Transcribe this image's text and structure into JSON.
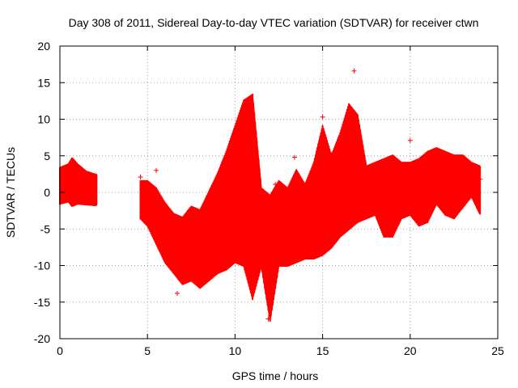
{
  "chart_data": {
    "type": "scatter",
    "title": "Day 308 of 2011, Sidereal Day-to-day VTEC variation (SDTVAR) for receiver ctwn",
    "xlabel": "GPS time / hours",
    "ylabel": "SDTVAR / TECUs",
    "xlim": [
      0,
      25
    ],
    "ylim": [
      -20,
      20
    ],
    "xticks": [
      0,
      5,
      10,
      15,
      20,
      25
    ],
    "yticks": [
      -20,
      -15,
      -10,
      -5,
      0,
      5,
      10,
      15,
      20
    ],
    "grid": true,
    "marker": "+",
    "color": "#ff0000",
    "series": [
      {
        "name": "SDTVAR band (min/max envelope)",
        "x": [
          0.0,
          0.5,
          0.7,
          1.0,
          1.5,
          2.0,
          2.1
        ],
        "y_min": [
          -1.5,
          -1.2,
          -1.8,
          -1.5,
          -1.6,
          -1.7,
          -1.6
        ],
        "y_max": [
          3.3,
          3.8,
          4.6,
          3.8,
          2.8,
          2.4,
          2.3
        ]
      },
      {
        "name": "SDTVAR band (min/max envelope)",
        "x": [
          4.6,
          5.0,
          5.5,
          6.0,
          6.5,
          7.0,
          7.5,
          8.0,
          8.5,
          9.0,
          9.5,
          10.0,
          10.5,
          11.0,
          11.5,
          12.0,
          12.5,
          13.0,
          13.5,
          14.0,
          14.5,
          15.0,
          15.5,
          16.0,
          16.5,
          17.0,
          17.5,
          18.0,
          18.5,
          19.0,
          19.5,
          20.0,
          20.5,
          21.0,
          21.5,
          22.0,
          22.5,
          23.0,
          23.5,
          24.0
        ],
        "y_min": [
          -3.5,
          -4.5,
          -7.0,
          -9.5,
          -11.0,
          -12.5,
          -12.0,
          -13.0,
          -12.0,
          -11.0,
          -10.5,
          -9.5,
          -10.0,
          -14.5,
          -10.0,
          -17.5,
          -10.0,
          -10.0,
          -9.5,
          -9.0,
          -9.0,
          -8.5,
          -7.5,
          -6.0,
          -5.0,
          -4.0,
          -3.5,
          -3.0,
          -6.0,
          -6.0,
          -3.5,
          -3.0,
          -4.5,
          -4.0,
          -1.5,
          -3.0,
          -3.5,
          -2.0,
          -0.5,
          -3.0
        ],
        "y_max": [
          1.5,
          1.5,
          0.5,
          -1.5,
          -3.0,
          -3.5,
          -2.0,
          -2.5,
          0.0,
          2.5,
          5.5,
          9.0,
          12.5,
          13.3,
          0.5,
          -0.5,
          1.5,
          0.5,
          3.0,
          1.0,
          4.0,
          9.0,
          5.0,
          8.0,
          12.0,
          10.5,
          3.5,
          4.0,
          4.5,
          5.0,
          4.0,
          4.0,
          4.5,
          5.5,
          6.0,
          5.5,
          5.0,
          5.0,
          4.0,
          3.5
        ]
      },
      {
        "name": "SDTVAR outliers",
        "points": [
          [
            4.6,
            2.1
          ],
          [
            5.5,
            3.0
          ],
          [
            6.7,
            -13.8
          ],
          [
            12.3,
            1.1
          ],
          [
            16.8,
            16.6
          ],
          [
            20.0,
            7.1
          ],
          [
            13.4,
            4.8
          ],
          [
            15.0,
            10.3
          ],
          [
            11.9,
            -17.3
          ],
          [
            24.0,
            1.8
          ]
        ]
      }
    ]
  }
}
